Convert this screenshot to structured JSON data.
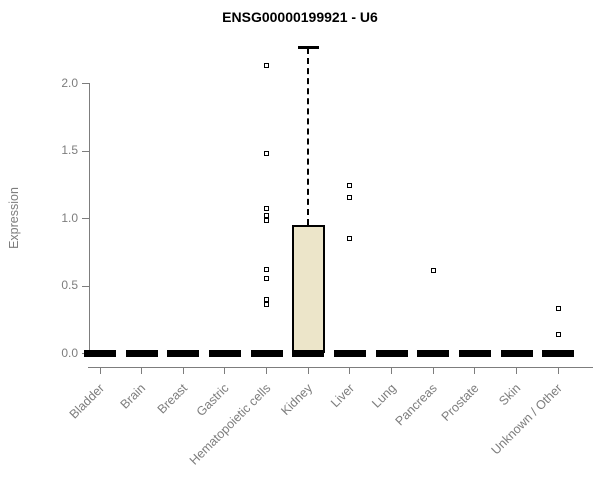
{
  "title": "ENSG00000199921 - U6",
  "chart_data": {
    "type": "boxplot",
    "title": "ENSG00000199921 - U6",
    "ylabel": "Expression",
    "xlabel": "",
    "ylim": [
      0,
      2.3
    ],
    "grid": false,
    "yticks": [
      "0.0",
      "0.5",
      "1.0",
      "1.5",
      "2.0"
    ],
    "categories": [
      "Bladder",
      "Brain",
      "Breast",
      "Gastric",
      "Hematopoietic cells",
      "Kidney",
      "Liver",
      "Lung",
      "Pancreas",
      "Prostate",
      "Skin",
      "Unknown / Other"
    ],
    "boxes": [
      {
        "category": "Bladder",
        "q1": 0,
        "median": 0,
        "q3": 0,
        "whisker_low": 0,
        "whisker_high": 0,
        "outliers": []
      },
      {
        "category": "Brain",
        "q1": 0,
        "median": 0,
        "q3": 0,
        "whisker_low": 0,
        "whisker_high": 0,
        "outliers": []
      },
      {
        "category": "Breast",
        "q1": 0,
        "median": 0,
        "q3": 0,
        "whisker_low": 0,
        "whisker_high": 0,
        "outliers": []
      },
      {
        "category": "Gastric",
        "q1": 0,
        "median": 0,
        "q3": 0,
        "whisker_low": 0,
        "whisker_high": 0,
        "outliers": []
      },
      {
        "category": "Hematopoietic cells",
        "q1": 0,
        "median": 0,
        "q3": 0,
        "whisker_low": 0,
        "whisker_high": 0,
        "outliers": [
          2.13,
          1.48,
          1.07,
          1.02,
          0.98,
          0.62,
          0.55,
          0.4,
          0.36
        ]
      },
      {
        "category": "Kidney",
        "q1": 0,
        "median": 0,
        "q3": 0.95,
        "whisker_low": 0,
        "whisker_high": 2.26,
        "outliers": []
      },
      {
        "category": "Liver",
        "q1": 0,
        "median": 0,
        "q3": 0,
        "whisker_low": 0,
        "whisker_high": 0,
        "outliers": [
          1.24,
          1.15,
          0.85
        ]
      },
      {
        "category": "Lung",
        "q1": 0,
        "median": 0,
        "q3": 0,
        "whisker_low": 0,
        "whisker_high": 0,
        "outliers": []
      },
      {
        "category": "Pancreas",
        "q1": 0,
        "median": 0,
        "q3": 0,
        "whisker_low": 0,
        "whisker_high": 0,
        "outliers": [
          0.61
        ]
      },
      {
        "category": "Prostate",
        "q1": 0,
        "median": 0,
        "q3": 0,
        "whisker_low": 0,
        "whisker_high": 0,
        "outliers": []
      },
      {
        "category": "Skin",
        "q1": 0,
        "median": 0,
        "q3": 0,
        "whisker_low": 0,
        "whisker_high": 0,
        "outliers": []
      },
      {
        "category": "Unknown / Other",
        "q1": 0,
        "median": 0,
        "q3": 0,
        "whisker_low": 0,
        "whisker_high": 0,
        "outliers": [
          0.33,
          0.14
        ]
      }
    ],
    "colors": {
      "box_fill": "#ECE5C9",
      "box_border": "#000000",
      "whisker": "#000000",
      "outlier_border": "#000000",
      "outlier_fill": "#FFFFFF",
      "axis": "#7D7D7D",
      "tick_text": "#7D7D7D",
      "title_text": "#000000",
      "background": "#FFFFFF"
    }
  }
}
